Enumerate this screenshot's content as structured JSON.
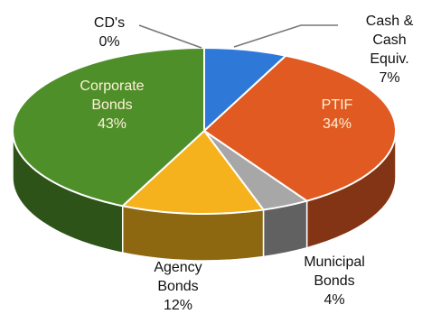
{
  "chart_data": {
    "type": "pie",
    "title": "",
    "slices": [
      {
        "key": "cds",
        "label_lines": [
          "CD's"
        ],
        "percent_text": "0%",
        "value": 0,
        "color": "#e8e8e8"
      },
      {
        "key": "cash",
        "label_lines": [
          "Cash &",
          "Cash",
          "Equiv."
        ],
        "percent_text": "7%",
        "value": 7,
        "color": "#2e79d8"
      },
      {
        "key": "ptif",
        "label_lines": [
          "PTIF"
        ],
        "percent_text": "34%",
        "value": 34,
        "color": "#e05a22"
      },
      {
        "key": "municipal",
        "label_lines": [
          "Municipal",
          "Bonds"
        ],
        "percent_text": "4%",
        "value": 4,
        "color": "#a7a7a7"
      },
      {
        "key": "agency",
        "label_lines": [
          "Agency",
          "Bonds"
        ],
        "percent_text": "12%",
        "value": 12,
        "color": "#f5b21d"
      },
      {
        "key": "corporate",
        "label_lines": [
          "Corporate",
          "Bonds"
        ],
        "percent_text": "43%",
        "value": 43,
        "color": "#4e8f2a"
      }
    ]
  }
}
